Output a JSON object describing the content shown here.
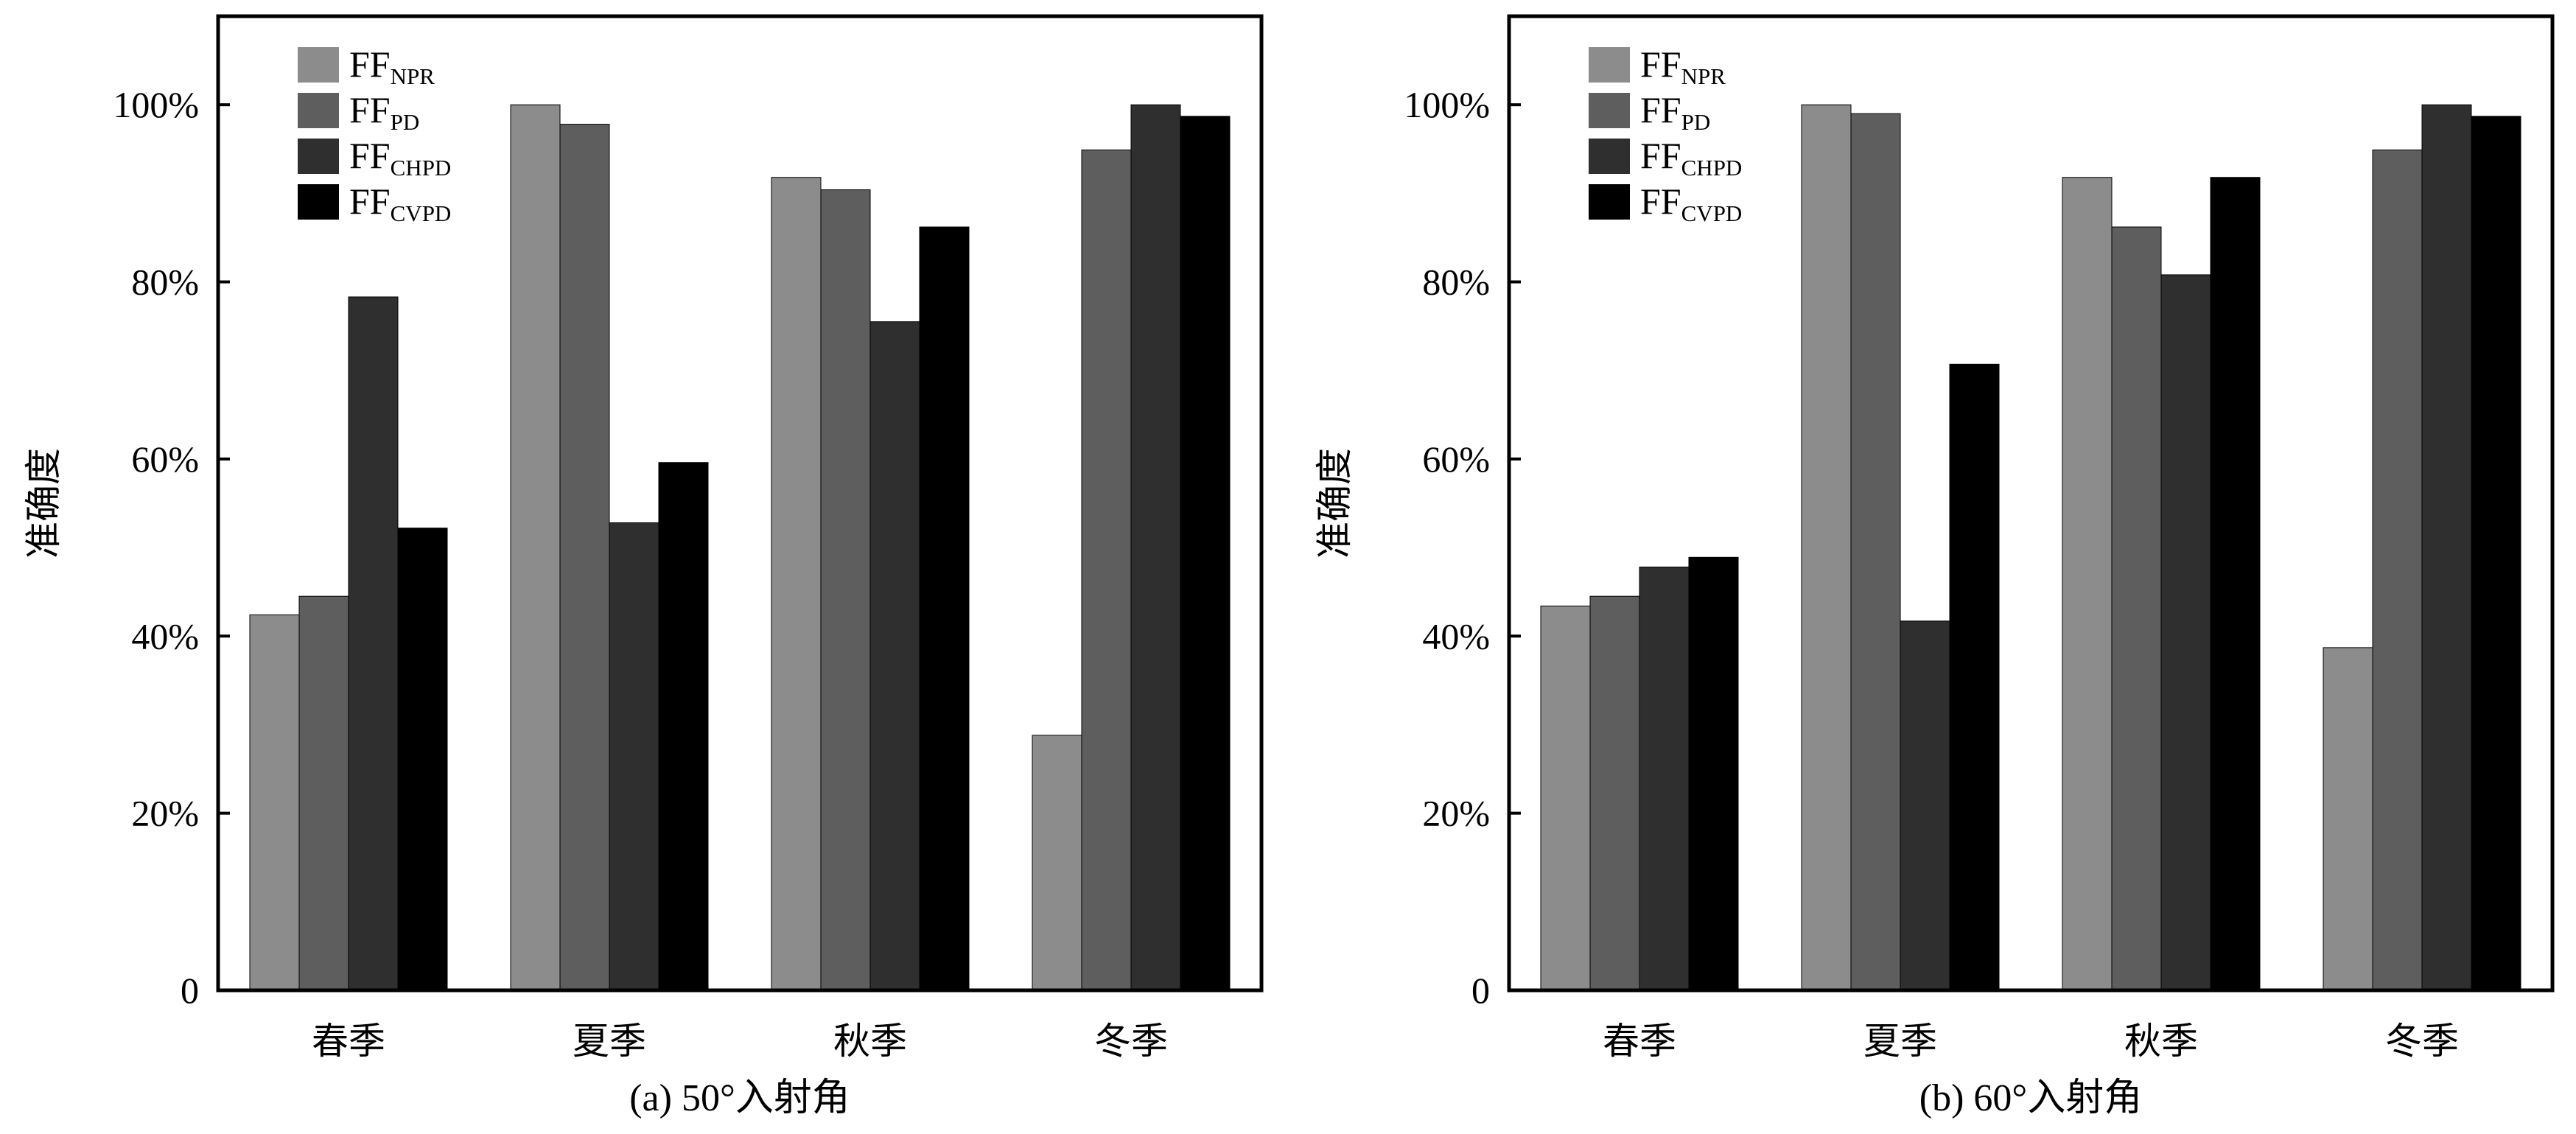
{
  "chart_data": [
    {
      "type": "bar",
      "caption": "(a) 50°入射角",
      "ylabel": "准确度",
      "categories": [
        "春季",
        "夏季",
        "秋季",
        "冬季"
      ],
      "yticks": [
        "0",
        "20%",
        "40%",
        "60%",
        "80%",
        "100%"
      ],
      "ylim": [
        0,
        1.1
      ],
      "legend_position": "top-left",
      "series": [
        {
          "name": "FF",
          "sub": "NPR",
          "color": "#8c8c8c",
          "values": [
            0.424,
            1.0,
            0.918,
            0.288
          ]
        },
        {
          "name": "FF",
          "sub": "PD",
          "color": "#5e5e5e",
          "values": [
            0.445,
            0.978,
            0.904,
            0.949
          ]
        },
        {
          "name": "FF",
          "sub": "CHPD",
          "color": "#2f2f2f",
          "values": [
            0.783,
            0.528,
            0.755,
            1.0
          ]
        },
        {
          "name": "FF",
          "sub": "CVPD",
          "color": "#000000",
          "values": [
            0.522,
            0.596,
            0.862,
            0.987
          ]
        }
      ]
    },
    {
      "type": "bar",
      "caption": "(b) 60°入射角",
      "ylabel": "准确度",
      "categories": [
        "春季",
        "夏季",
        "秋季",
        "冬季"
      ],
      "yticks": [
        "0",
        "20%",
        "40%",
        "60%",
        "80%",
        "100%"
      ],
      "ylim": [
        0,
        1.1
      ],
      "legend_position": "top-left",
      "series": [
        {
          "name": "FF",
          "sub": "NPR",
          "color": "#8c8c8c",
          "values": [
            0.434,
            1.0,
            0.918,
            0.387
          ]
        },
        {
          "name": "FF",
          "sub": "PD",
          "color": "#5e5e5e",
          "values": [
            0.445,
            0.99,
            0.862,
            0.949
          ]
        },
        {
          "name": "FF",
          "sub": "CHPD",
          "color": "#2f2f2f",
          "values": [
            0.478,
            0.417,
            0.808,
            1.0
          ]
        },
        {
          "name": "FF",
          "sub": "CVPD",
          "color": "#000000",
          "values": [
            0.489,
            0.707,
            0.918,
            0.987
          ]
        }
      ]
    }
  ]
}
